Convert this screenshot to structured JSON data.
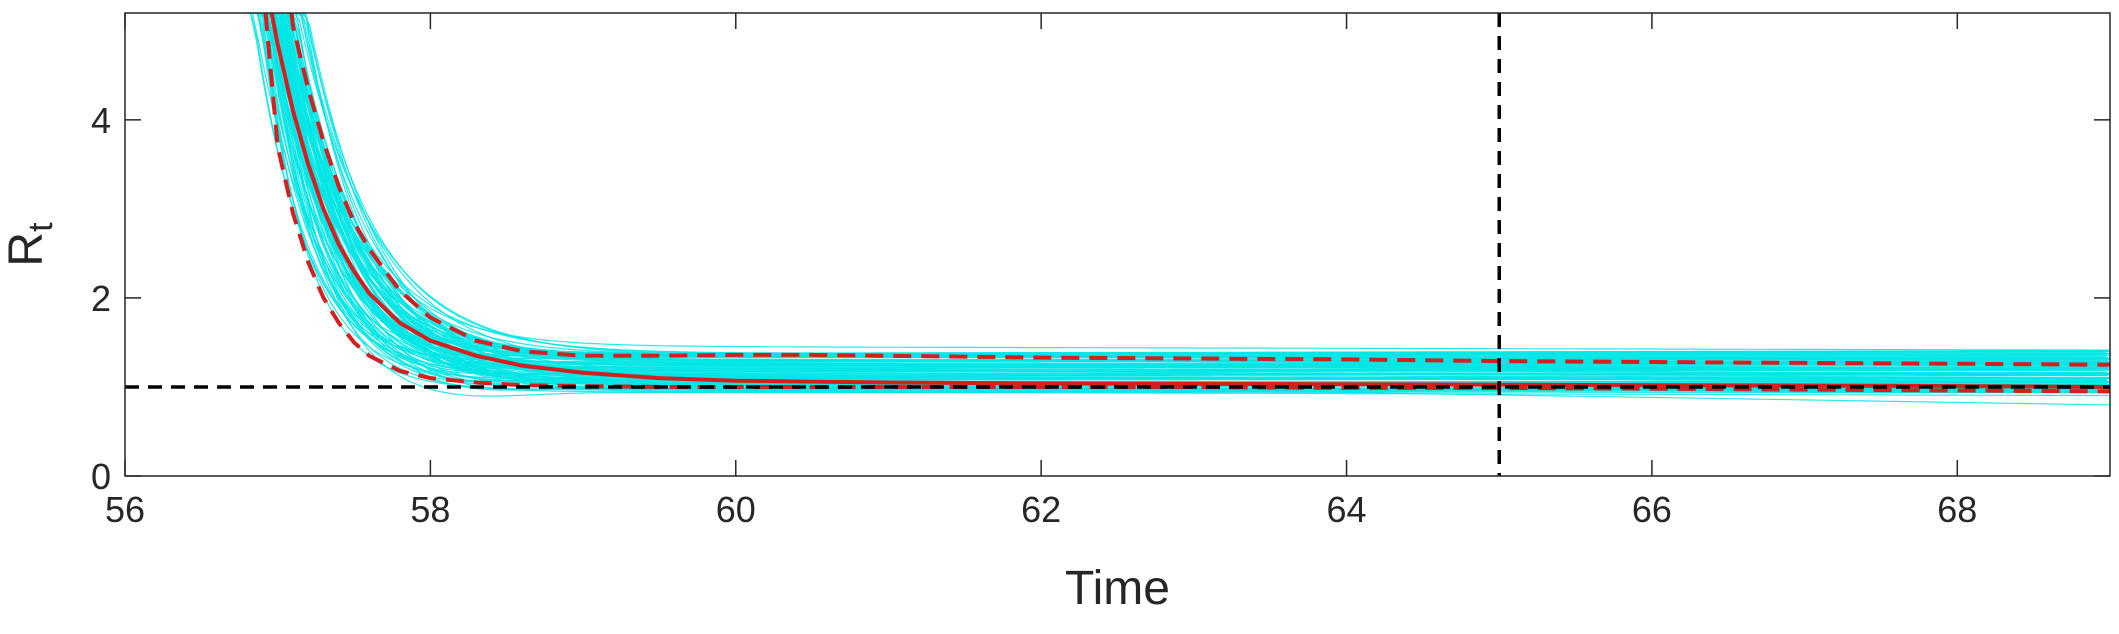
{
  "chart_data": {
    "type": "line",
    "title": "",
    "xlabel": "Time",
    "ylabel": {
      "main": "R",
      "sub": "t"
    },
    "xlim": [
      56,
      69
    ],
    "ylim": [
      0,
      5.2
    ],
    "xticks": [
      56,
      58,
      60,
      62,
      64,
      66,
      68
    ],
    "yticks": [
      0,
      2,
      4
    ],
    "grid": false,
    "reference_lines": [
      {
        "orientation": "horizontal",
        "value": 1,
        "style": "dashed",
        "color": "#000000"
      },
      {
        "orientation": "vertical",
        "value": 65,
        "style": "dashed",
        "color": "#000000"
      }
    ],
    "ensemble": {
      "color": "#00e5e5",
      "count": 100,
      "description_hidden": true
    },
    "series": [
      {
        "style": "solid",
        "color": "#d41f1f",
        "x": [
          56.96,
          57.0,
          57.1,
          57.2,
          57.3,
          57.4,
          57.5,
          57.6,
          57.8,
          58.0,
          58.3,
          58.6,
          59.0,
          59.5,
          60.0,
          61.0,
          62.0,
          63.0,
          64.0,
          65.0,
          66.0,
          67.0,
          68.0,
          69.0
        ],
        "y": [
          5.2,
          4.85,
          4.1,
          3.5,
          3.0,
          2.6,
          2.3,
          2.05,
          1.72,
          1.52,
          1.35,
          1.24,
          1.16,
          1.1,
          1.07,
          1.05,
          1.04,
          1.035,
          1.03,
          1.025,
          1.02,
          1.015,
          1.01,
          1.0
        ]
      },
      {
        "style": "dashed",
        "color": "#d41f1f",
        "x": [
          57.09,
          57.1,
          57.2,
          57.3,
          57.4,
          57.5,
          57.6,
          57.8,
          58.0,
          58.3,
          58.6,
          59.0,
          59.5,
          60.0,
          60.5,
          61.0,
          62.0,
          63.0,
          64.0,
          65.0,
          66.0,
          67.0,
          68.0,
          69.0
        ],
        "y": [
          5.2,
          5.05,
          4.35,
          3.75,
          3.25,
          2.85,
          2.55,
          2.08,
          1.78,
          1.52,
          1.4,
          1.35,
          1.35,
          1.36,
          1.36,
          1.35,
          1.33,
          1.32,
          1.31,
          1.29,
          1.28,
          1.27,
          1.26,
          1.25
        ]
      },
      {
        "style": "dashed",
        "color": "#d41f1f",
        "x": [
          56.92,
          57.0,
          57.1,
          57.2,
          57.3,
          57.4,
          57.5,
          57.6,
          57.8,
          58.0,
          58.3,
          58.6,
          59.0,
          59.5,
          60.0,
          61.0,
          62.0,
          63.0,
          64.0,
          65.0,
          66.0,
          67.0,
          68.0,
          69.0
        ],
        "y": [
          5.2,
          3.7,
          2.95,
          2.4,
          2.0,
          1.72,
          1.5,
          1.35,
          1.18,
          1.1,
          1.05,
          1.02,
          1.01,
          1.0,
          1.0,
          1.0,
          1.0,
          1.0,
          0.99,
          0.99,
          0.98,
          0.97,
          0.96,
          0.95
        ]
      }
    ]
  }
}
